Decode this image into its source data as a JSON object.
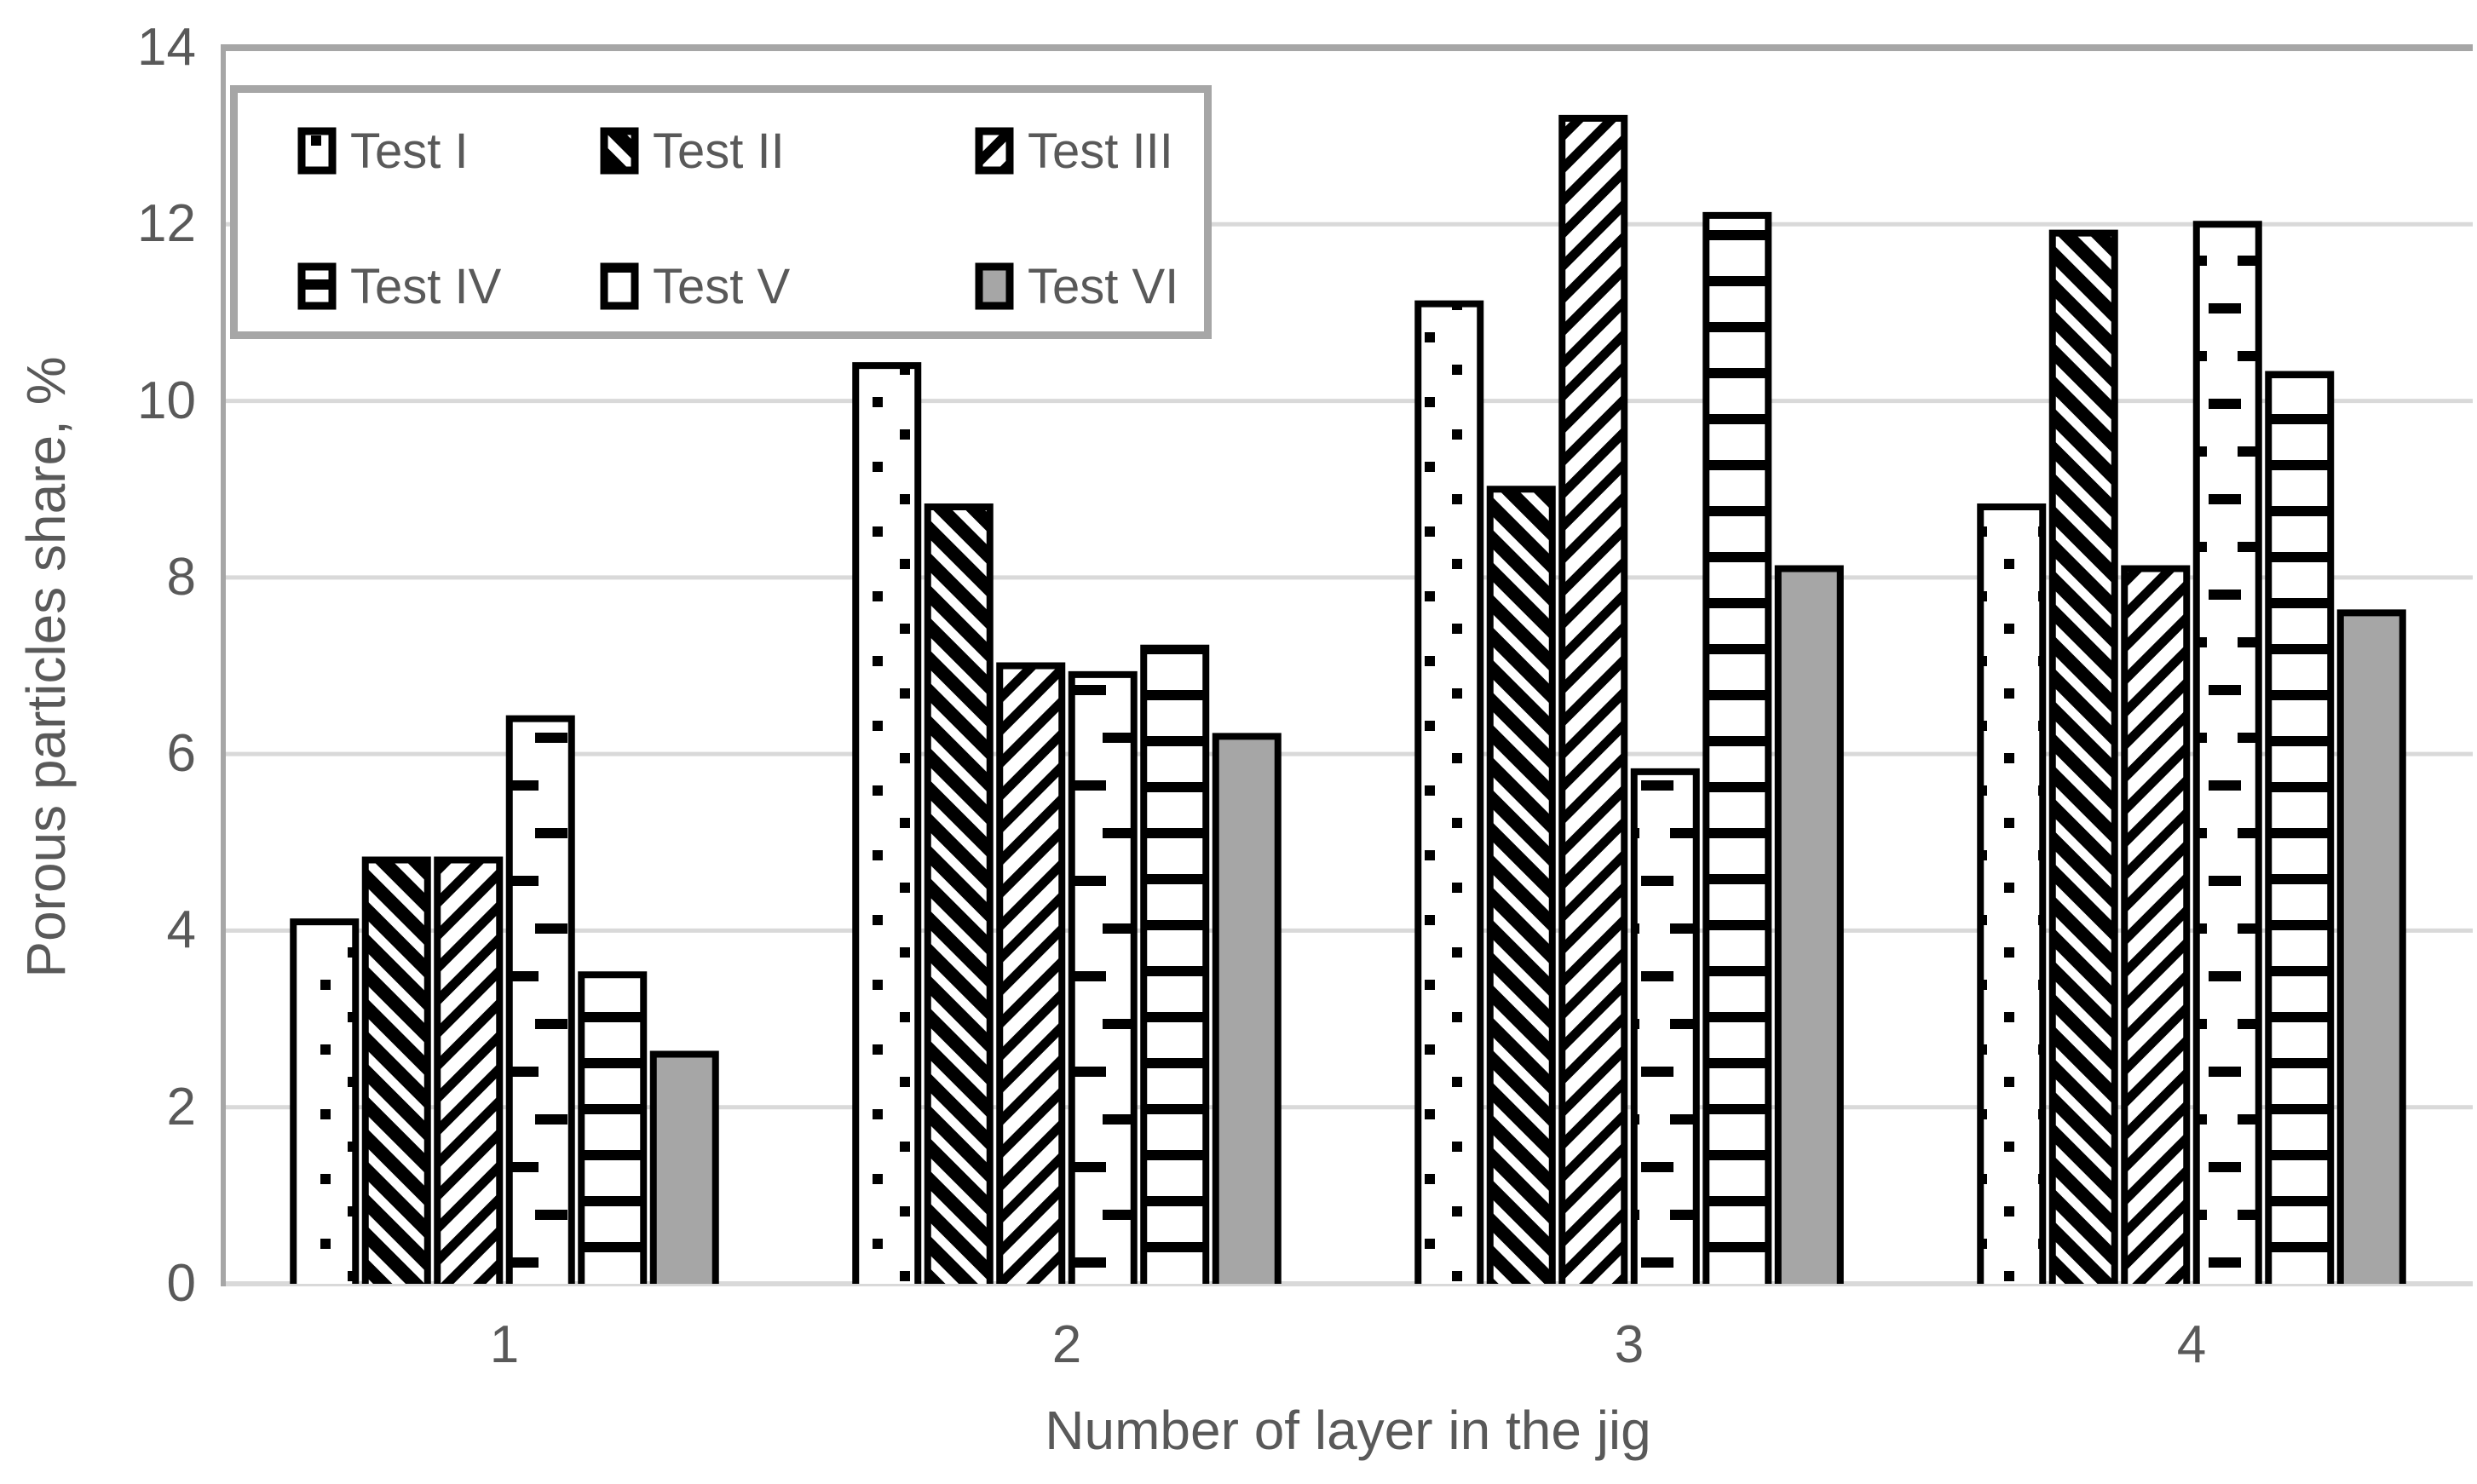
{
  "chart_data": {
    "type": "bar",
    "xlabel": "Number of layer in the jig",
    "ylabel": "Porous particles share, %",
    "categories": [
      "1",
      "2",
      "3",
      "4"
    ],
    "series": [
      {
        "name": "Test I",
        "pattern": "sparse-dots",
        "values": [
          4.1,
          10.4,
          11.1,
          8.8
        ]
      },
      {
        "name": "Test II",
        "pattern": "dense-diagonal-hatch",
        "values": [
          4.8,
          8.8,
          9.0,
          11.9
        ]
      },
      {
        "name": "Test III",
        "pattern": "light-diagonal-hatch",
        "values": [
          4.8,
          7.0,
          13.2,
          8.1
        ]
      },
      {
        "name": "Test IV",
        "pattern": "staggered-dashes",
        "values": [
          6.4,
          6.9,
          5.8,
          12.0
        ]
      },
      {
        "name": "Test V",
        "pattern": "horizontal-lines",
        "values": [
          3.5,
          7.2,
          12.1,
          10.3
        ]
      },
      {
        "name": "Test VI",
        "pattern": "solid-gray",
        "values": [
          2.6,
          6.2,
          8.1,
          7.6
        ]
      }
    ],
    "ylim": [
      0,
      14
    ],
    "yticks": [
      0,
      2,
      4,
      6,
      8,
      10,
      12,
      14
    ],
    "grid": true,
    "legend_position": "top-left-inside"
  },
  "colors": {
    "background": "#ffffff",
    "grid": "#d9d9d9",
    "axis": "#a6a6a6",
    "text": "#595959",
    "bar_outline": "#000000",
    "solid_fill": "#a6a6a6",
    "legend_border": "#a6a6a6"
  }
}
